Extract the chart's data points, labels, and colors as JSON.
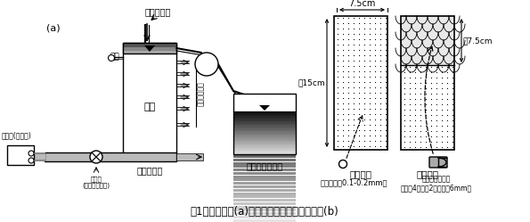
{
  "title": "図1　実験装置(a)およびろ過層の構成とろ材(b)",
  "fig_label_a": "(a)",
  "label_suspension_in": "惲濁液流入",
  "label_excess_water": "余水",
  "label_filter_layer": "ろ層",
  "label_outflow": "流出水(ろ過水)",
  "label_filter_tower": "【ろ過塔】",
  "label_manometer": "マノメータ孔",
  "label_suspension_tank": "【土砂惲濁液】",
  "label_valve": "バルブ\n(初期流速調節)",
  "label_pump": "P",
  "label_silica_sand": "石英砂（径0.1-0.2mm）",
  "label_half_tube": "半円筒チューブ\n（外径4、内径2、長さ的6mm）",
  "label_single": "【単層】",
  "label_double": "【二層】",
  "dim_width": "7.5cm",
  "dim_height": "絀15cm",
  "dim_top": "絀7.5cm",
  "bg_color": "#ffffff"
}
